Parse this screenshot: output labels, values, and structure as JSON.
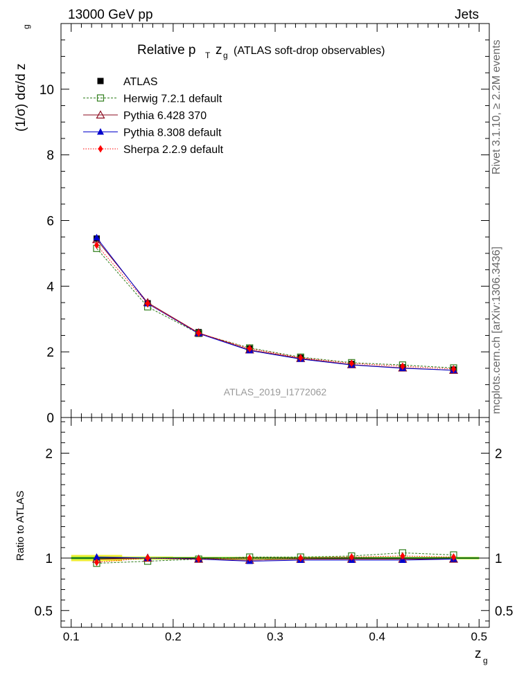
{
  "header": {
    "left": "13000 GeV pp",
    "right": "Jets"
  },
  "side_labels": {
    "rivet": "Rivet 3.1.10, ≥ 2.2M events",
    "mcplots": "mcplots.cern.ch [arXiv:1306.3436]"
  },
  "colors": {
    "ATLAS": "#000000",
    "Herwig": "#2e7d1a",
    "Pythia6": "#8b0a1e",
    "Pythia8": "#0000cc",
    "Sherpa": "#ff0000",
    "band_inner": "#33dd33",
    "band_outer": "#eeee33"
  },
  "chart_data": [
    {
      "type": "line",
      "title_parts": {
        "main": "Relative p",
        "sub_T": "T",
        "z": "z",
        "sub_g": "g",
        "rest": "(ATLAS soft-drop observables)"
      },
      "ylabel": "(1/σ) dσ/d z",
      "ylabel_sub": "g",
      "watermark": "ATLAS_2019_I1772062",
      "ylim": [
        0,
        12
      ],
      "yticks": [
        0,
        2,
        4,
        6,
        8,
        10
      ],
      "xlim": [
        0.09,
        0.51
      ],
      "x": [
        0.125,
        0.175,
        0.225,
        0.275,
        0.325,
        0.375,
        0.425,
        0.475
      ],
      "series": [
        {
          "name": "ATLAS",
          "marker": "filled-square",
          "values": [
            5.45,
            3.48,
            2.6,
            2.1,
            1.82,
            1.63,
            1.53,
            1.46
          ]
        },
        {
          "name": "Herwig 7.2.1 default",
          "marker": "open-square",
          "dash": "dashed",
          "values": [
            5.15,
            3.37,
            2.56,
            2.12,
            1.84,
            1.67,
            1.6,
            1.51
          ]
        },
        {
          "name": "Pythia 6.428 370",
          "marker": "open-triangle",
          "dash": "solid",
          "values": [
            5.42,
            3.5,
            2.58,
            2.06,
            1.8,
            1.61,
            1.51,
            1.44
          ]
        },
        {
          "name": "Pythia 8.308 default",
          "marker": "filled-triangle",
          "dash": "solid",
          "values": [
            5.48,
            3.47,
            2.56,
            2.04,
            1.78,
            1.6,
            1.5,
            1.44
          ]
        },
        {
          "name": "Sherpa 2.2.9 default",
          "marker": "filled-diamond",
          "dash": "dotted",
          "values": [
            5.25,
            3.47,
            2.57,
            2.1,
            1.82,
            1.65,
            1.56,
            1.48
          ]
        }
      ]
    },
    {
      "type": "line",
      "ylabel": "Ratio to ATLAS",
      "xlabel": "z",
      "xlabel_sub": "g",
      "ylim": [
        0.34,
        2.34
      ],
      "yticks": [
        0.5,
        1,
        2
      ],
      "yticklabels": [
        "0.5",
        "1",
        "2"
      ],
      "xlim": [
        0.09,
        0.51
      ],
      "xticks": [
        0.1,
        0.2,
        0.3,
        0.4,
        0.5
      ],
      "xticklabels": [
        "0.1",
        "0.2",
        "0.3",
        "0.4",
        "0.5"
      ],
      "x": [
        0.125,
        0.175,
        0.225,
        0.275,
        0.325,
        0.375,
        0.425,
        0.475
      ],
      "band_inner": [
        0.01,
        0.008,
        0.008,
        0.008,
        0.008,
        0.008,
        0.008,
        0.008
      ],
      "band_outer": [
        0.03,
        0.015,
        0.012,
        0.012,
        0.012,
        0.012,
        0.012,
        0.012
      ],
      "series": [
        {
          "name": "Herwig 7.2.1 default",
          "values": [
            0.95,
            0.97,
            0.99,
            1.01,
            1.01,
            1.02,
            1.05,
            1.03
          ]
        },
        {
          "name": "Pythia 6.428 370",
          "values": [
            0.99,
            1.0,
            0.99,
            0.98,
            0.99,
            0.99,
            0.99,
            0.99
          ]
        },
        {
          "name": "Pythia 8.308 default",
          "values": [
            1.01,
            1.0,
            0.99,
            0.97,
            0.98,
            0.98,
            0.98,
            0.99
          ]
        },
        {
          "name": "Sherpa 2.2.9 default",
          "values": [
            0.96,
            1.0,
            0.99,
            1.0,
            1.0,
            1.01,
            1.02,
            1.01
          ]
        }
      ]
    }
  ]
}
